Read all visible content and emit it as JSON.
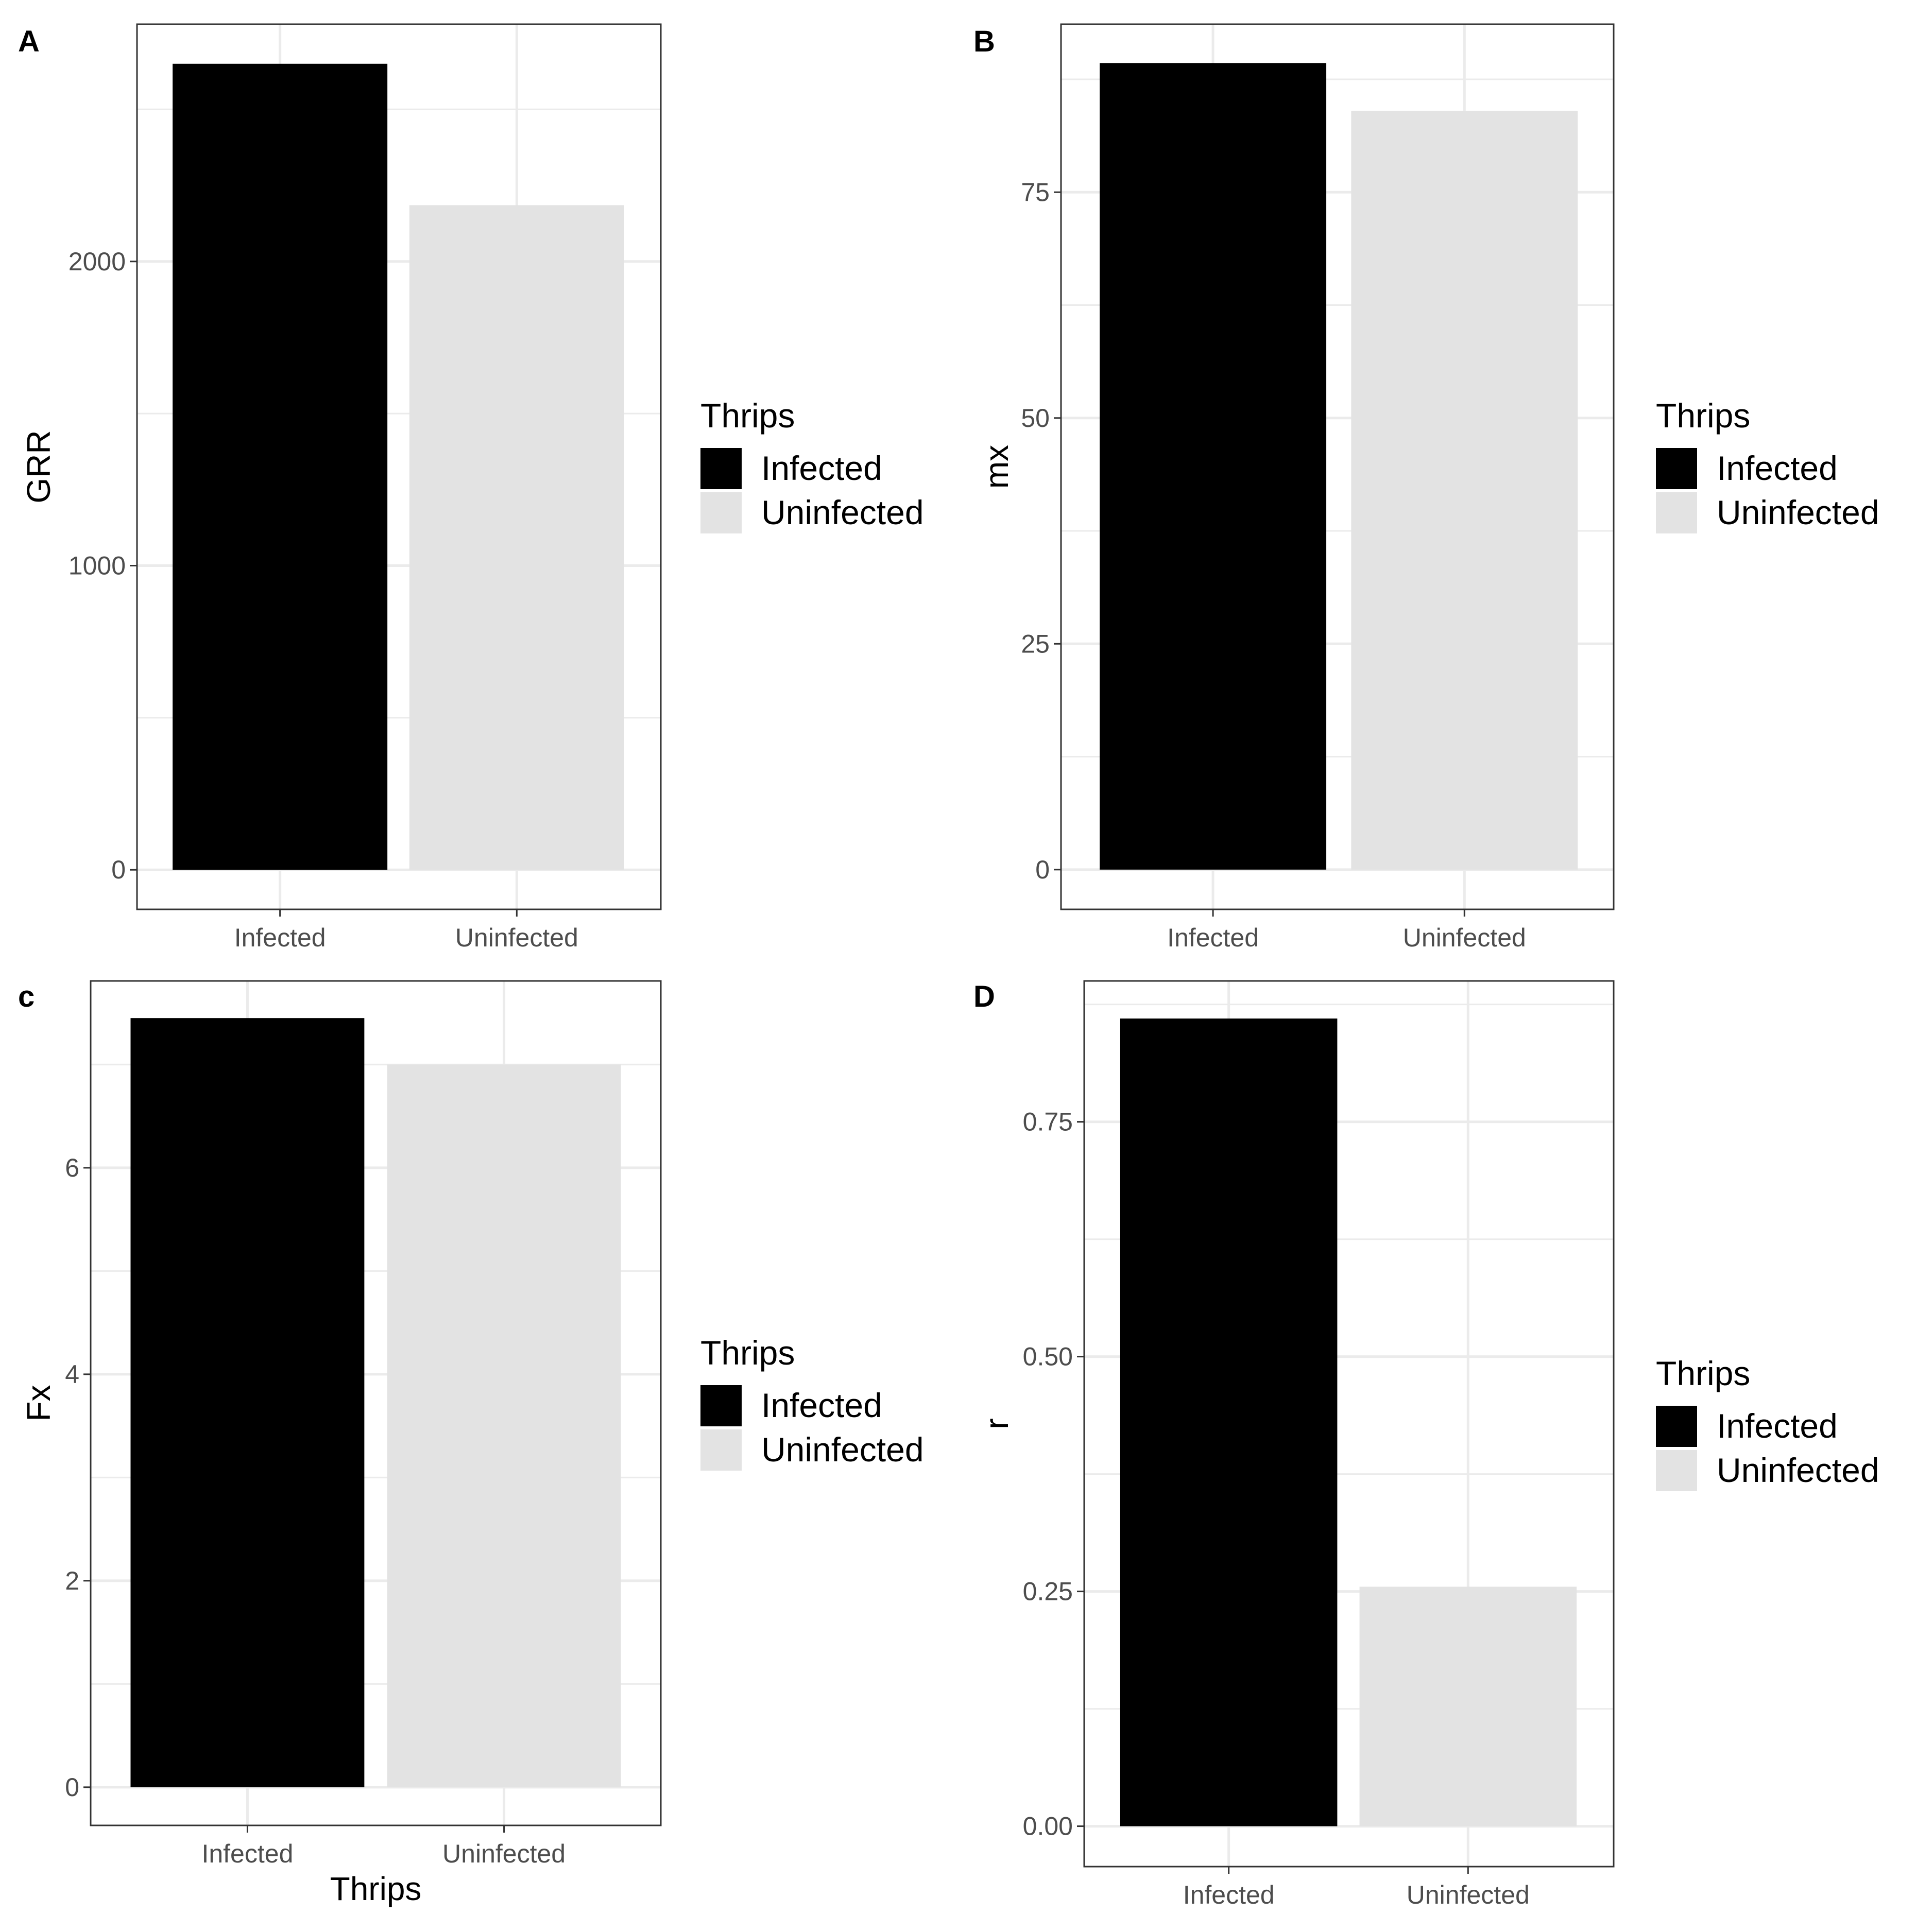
{
  "figure": {
    "legend_title": "Thrips",
    "legend_entries": [
      "Infected",
      "Uninfected"
    ],
    "colors": {
      "Infected": "#000000",
      "Uninfected": "#e3e3e3",
      "grid": "#ebebeb",
      "axis_text": "#4d4d4d"
    }
  },
  "chart_data": [
    {
      "panel": "A",
      "type": "bar",
      "categories": [
        "Infected",
        "Uninfected"
      ],
      "values": [
        2650,
        2185
      ],
      "xlabel": "",
      "ylabel": "GRR",
      "ylim": [
        -130,
        2780
      ],
      "yticks": [
        0,
        1000,
        2000
      ],
      "ytick_labels": [
        "0",
        "1000",
        "2000"
      ],
      "grid": true,
      "legend_position": "right"
    },
    {
      "panel": "B",
      "type": "bar",
      "categories": [
        "Infected",
        "Uninfected"
      ],
      "values": [
        89.3,
        84
      ],
      "xlabel": "",
      "ylabel": "mx",
      "ylim": [
        -4.4,
        93.6
      ],
      "yticks": [
        0,
        25,
        50,
        75
      ],
      "ytick_labels": [
        "0",
        "25",
        "50",
        "75"
      ],
      "grid": true,
      "legend_position": "right"
    },
    {
      "panel": "c",
      "type": "bar",
      "categories": [
        "Infected",
        "Uninfected"
      ],
      "values": [
        7.45,
        7.0
      ],
      "xlabel": "Thrips",
      "ylabel": "Fx",
      "ylim": [
        -0.37,
        7.81
      ],
      "yticks": [
        0,
        2,
        4,
        6
      ],
      "ytick_labels": [
        "0",
        "2",
        "4",
        "6"
      ],
      "grid": true,
      "legend_position": "right"
    },
    {
      "panel": "D",
      "type": "bar",
      "categories": [
        "Infected",
        "Uninfected"
      ],
      "values": [
        0.86,
        0.255
      ],
      "xlabel": "",
      "ylabel": "r",
      "ylim": [
        -0.043,
        0.9
      ],
      "yticks": [
        0.0,
        0.25,
        0.5,
        0.75
      ],
      "ytick_labels": [
        "0.00",
        "0.25",
        "0.50",
        "0.75"
      ],
      "grid": true,
      "legend_position": "right"
    }
  ]
}
